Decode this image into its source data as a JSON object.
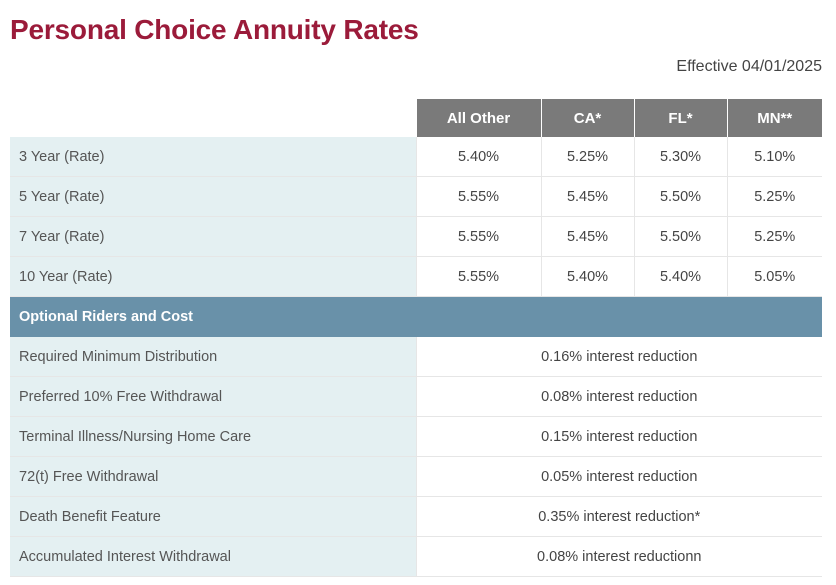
{
  "page": {
    "title": "Personal Choice Annuity Rates",
    "effective": "Effective 04/01/2025"
  },
  "table": {
    "columns": [
      "All Other",
      "CA*",
      "FL*",
      "MN**"
    ],
    "rates": [
      {
        "label": "3 Year (Rate)",
        "values": [
          "5.40%",
          "5.25%",
          "5.30%",
          "5.10%"
        ]
      },
      {
        "label": "5 Year (Rate)",
        "values": [
          "5.55%",
          "5.45%",
          "5.50%",
          "5.25%"
        ]
      },
      {
        "label": "7 Year (Rate)",
        "values": [
          "5.55%",
          "5.45%",
          "5.50%",
          "5.25%"
        ]
      },
      {
        "label": "10 Year (Rate)",
        "values": [
          "5.55%",
          "5.40%",
          "5.40%",
          "5.05%"
        ]
      }
    ],
    "section_title": "Optional Riders and Cost",
    "riders": [
      {
        "label": "Required Minimum Distribution",
        "cost": "0.16% interest reduction"
      },
      {
        "label": "Preferred 10% Free Withdrawal",
        "cost": "0.08% interest reduction"
      },
      {
        "label": "Terminal Illness/Nursing Home Care",
        "cost": "0.15% interest reduction"
      },
      {
        "label": "72(t) Free Withdrawal",
        "cost": "0.05% interest reduction"
      },
      {
        "label": "Death Benefit Feature",
        "cost": "0.35% interest reduction*"
      },
      {
        "label": "Accumulated Interest Withdrawal",
        "cost": "0.08% interest reductionn"
      }
    ]
  },
  "colors": {
    "title": "#9b1b3a",
    "header_bg": "#7a7a7a",
    "section_bg": "#6991a9",
    "label_bg": "#e4f0f2"
  }
}
